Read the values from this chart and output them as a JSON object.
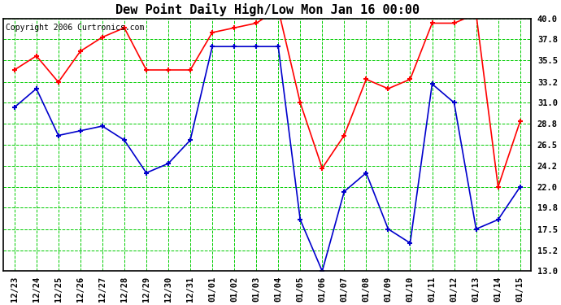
{
  "title": "Dew Point Daily High/Low Mon Jan 16 00:00",
  "copyright": "Copyright 2006 Curtronics.com",
  "dates": [
    "12/23",
    "12/24",
    "12/25",
    "12/26",
    "12/27",
    "12/28",
    "12/29",
    "12/30",
    "12/31",
    "01/01",
    "01/02",
    "01/03",
    "01/04",
    "01/05",
    "01/06",
    "01/07",
    "01/08",
    "01/09",
    "01/10",
    "01/11",
    "01/12",
    "01/13",
    "01/14",
    "01/15"
  ],
  "high_values": [
    34.5,
    36.0,
    33.2,
    36.5,
    38.0,
    39.0,
    34.5,
    34.5,
    34.5,
    38.5,
    39.0,
    39.5,
    41.0,
    31.0,
    24.0,
    27.5,
    33.5,
    32.5,
    33.5,
    39.5,
    39.5,
    40.5,
    22.0,
    29.0
  ],
  "low_values": [
    30.5,
    32.5,
    27.5,
    28.0,
    28.5,
    27.0,
    23.5,
    24.5,
    27.0,
    37.0,
    37.0,
    37.0,
    37.0,
    18.5,
    13.0,
    21.5,
    23.5,
    17.5,
    16.0,
    33.0,
    31.0,
    17.5,
    18.5,
    22.0
  ],
  "high_color": "#ff0000",
  "low_color": "#0000cc",
  "grid_color": "#00cc00",
  "bg_color": "#ffffff",
  "plot_bg_color": "#ffffff",
  "border_color": "#000000",
  "title_color": "#000000",
  "ylim_min": 13.0,
  "ylim_max": 40.0,
  "yticks": [
    13.0,
    15.2,
    17.5,
    19.8,
    22.0,
    24.2,
    26.5,
    28.8,
    31.0,
    33.2,
    35.5,
    37.8,
    40.0
  ],
  "title_fontsize": 11,
  "tick_fontsize": 7.5,
  "copyright_fontsize": 7
}
